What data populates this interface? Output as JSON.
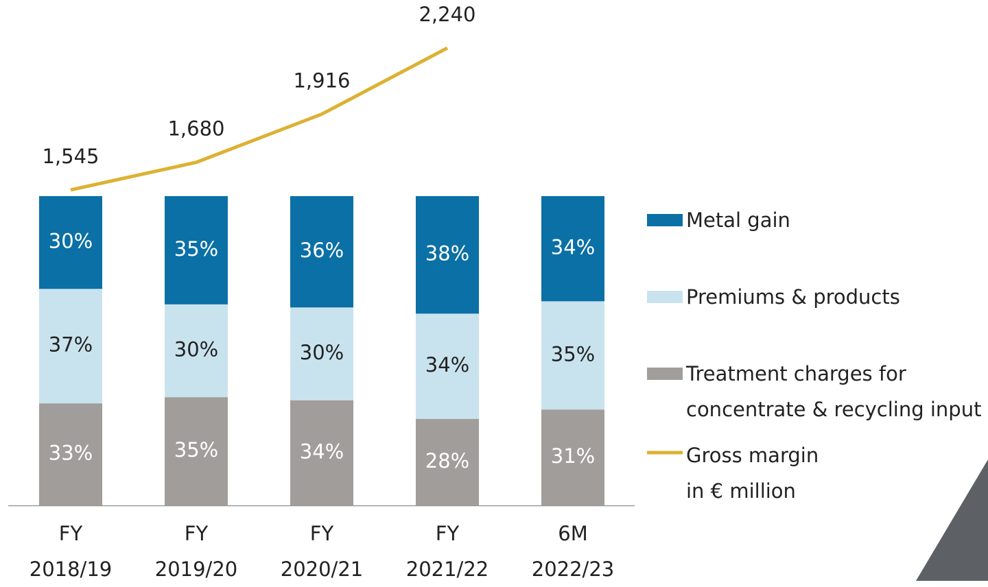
{
  "chart_data": {
    "type": "bar",
    "categories": [
      "FY\n2018/19",
      "FY\n2019/20",
      "FY\n2020/21",
      "FY\n2021/22",
      "6M\n2022/23"
    ],
    "ylim": [
      0,
      100
    ],
    "y2lim": [
      0,
      2475
    ],
    "series": [
      {
        "name": "Metal gain",
        "type": "bar",
        "color": "#0b70a5",
        "values": [
          30,
          35,
          36,
          38,
          34
        ],
        "value_labels": [
          "30%",
          "35%",
          "36%",
          "38%",
          "34%"
        ]
      },
      {
        "name": "Premiums & products",
        "type": "bar",
        "color": "#c9e3ee",
        "values": [
          37,
          30,
          30,
          34,
          35
        ],
        "value_labels": [
          "37%",
          "30%",
          "30%",
          "34%",
          "35%"
        ]
      },
      {
        "name": "Treatment charges for\nconcentrate & recycling input",
        "type": "bar",
        "color": "#a19d9a",
        "values": [
          33,
          35,
          34,
          28,
          31
        ],
        "value_labels": [
          "33%",
          "35%",
          "34%",
          "28%",
          "31%"
        ]
      },
      {
        "name": "Gross margin\nin € million",
        "type": "line",
        "axis": "y2",
        "color": "#dcb234",
        "values": [
          1545,
          1680,
          1916,
          2240,
          null
        ],
        "value_labels": [
          "1,545",
          "1,680",
          "1,916",
          "2,240",
          null
        ]
      }
    ]
  }
}
